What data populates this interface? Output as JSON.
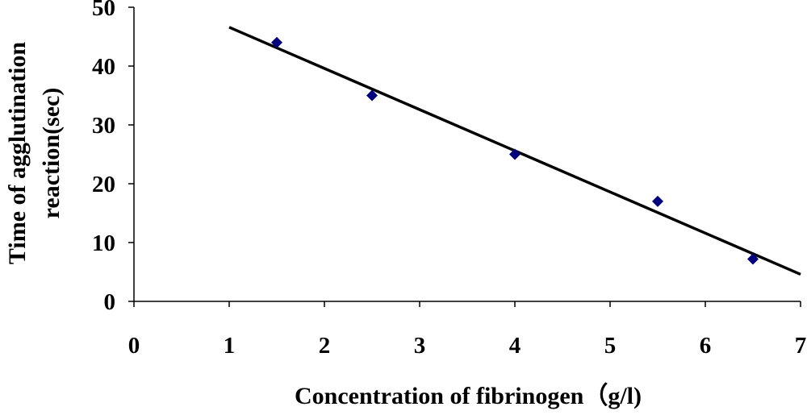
{
  "chart_data": {
    "type": "scatter",
    "xlabel": "Concentration of fibrinogen（g/l)",
    "ylabel_lines": [
      "Time of agglutination",
      "reaction(sec)"
    ],
    "xlim": [
      0,
      7
    ],
    "ylim": [
      0,
      50
    ],
    "x_ticks": [
      "0",
      "1",
      "2",
      "3",
      "4",
      "5",
      "6",
      "7"
    ],
    "y_ticks": [
      "0",
      "10",
      "20",
      "30",
      "40",
      "50"
    ],
    "grid": false,
    "series": [
      {
        "marker": "diamond",
        "color": "#00007F",
        "points": [
          {
            "x": 1.5,
            "y": 44
          },
          {
            "x": 2.5,
            "y": 35
          },
          {
            "x": 4.0,
            "y": 25
          },
          {
            "x": 5.5,
            "y": 17
          },
          {
            "x": 6.5,
            "y": 7.2
          }
        ]
      }
    ],
    "trendline": {
      "type": "linear",
      "color": "#000000",
      "from": {
        "x": 1.0,
        "y": 46.6
      },
      "to": {
        "x": 7.0,
        "y": 4.6
      }
    }
  }
}
